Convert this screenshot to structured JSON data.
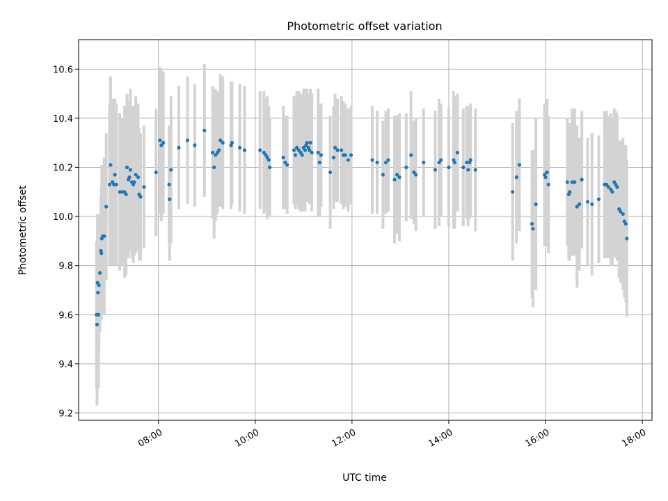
{
  "chart_data": {
    "type": "scatter",
    "title": "Photometric offset variation",
    "xlabel": "UTC time",
    "ylabel": "Photometric offset",
    "x_unit": "hours UTC",
    "xlim": [
      6.35,
      18.2
    ],
    "ylim": [
      9.17,
      10.72
    ],
    "x_ticks": [
      {
        "value": 8,
        "label": "08:00"
      },
      {
        "value": 10,
        "label": "10:00"
      },
      {
        "value": 12,
        "label": "12:00"
      },
      {
        "value": 14,
        "label": "14:00"
      },
      {
        "value": 16,
        "label": "16:00"
      },
      {
        "value": 18,
        "label": "18:00"
      }
    ],
    "y_ticks": [
      {
        "value": 9.2,
        "label": "9.2"
      },
      {
        "value": 9.4,
        "label": "9.4"
      },
      {
        "value": 9.6,
        "label": "9.6"
      },
      {
        "value": 9.8,
        "label": "9.8"
      },
      {
        "value": 10.0,
        "label": "10.0"
      },
      {
        "value": 10.2,
        "label": "10.2"
      },
      {
        "value": 10.4,
        "label": "10.4"
      },
      {
        "value": 10.6,
        "label": "10.6"
      }
    ],
    "grid": true,
    "marker_color": "#1f77b4",
    "errorbar_color": "#d3d3d3",
    "points": [
      [
        6.72,
        9.6,
        0.3
      ],
      [
        6.73,
        9.56,
        0.33
      ],
      [
        6.74,
        9.73,
        0.28
      ],
      [
        6.75,
        9.69,
        0.25
      ],
      [
        6.76,
        9.6,
        0.3
      ],
      [
        6.77,
        9.72,
        0.27
      ],
      [
        6.79,
        9.77,
        0.24
      ],
      [
        6.81,
        9.86,
        0.22
      ],
      [
        6.82,
        9.85,
        0.27
      ],
      [
        6.83,
        9.91,
        0.3
      ],
      [
        6.85,
        9.92,
        0.26
      ],
      [
        6.88,
        9.92,
        0.32
      ],
      [
        6.92,
        10.04,
        0.3
      ],
      [
        6.99,
        10.13,
        0.33
      ],
      [
        7.01,
        10.21,
        0.36
      ],
      [
        7.05,
        10.14,
        0.34
      ],
      [
        7.08,
        10.13,
        0.33
      ],
      [
        7.1,
        10.17,
        0.31
      ],
      [
        7.13,
        10.13,
        0.33
      ],
      [
        7.2,
        10.1,
        0.32
      ],
      [
        7.25,
        10.1,
        0.3
      ],
      [
        7.3,
        10.1,
        0.35
      ],
      [
        7.33,
        10.09,
        0.33
      ],
      [
        7.35,
        10.2,
        0.3
      ],
      [
        7.38,
        10.15,
        0.32
      ],
      [
        7.4,
        10.16,
        0.3
      ],
      [
        7.42,
        10.19,
        0.33
      ],
      [
        7.45,
        10.14,
        0.31
      ],
      [
        7.48,
        10.13,
        0.32
      ],
      [
        7.5,
        10.14,
        0.3
      ],
      [
        7.53,
        10.17,
        0.32
      ],
      [
        7.58,
        10.16,
        0.3
      ],
      [
        7.6,
        10.09,
        0.27
      ],
      [
        7.63,
        10.08,
        0.26
      ],
      [
        7.7,
        10.12,
        0.25
      ],
      [
        7.95,
        10.18,
        0.26
      ],
      [
        8.03,
        10.31,
        0.3
      ],
      [
        8.06,
        10.29,
        0.31
      ],
      [
        8.1,
        10.3,
        0.29
      ],
      [
        8.22,
        10.13,
        0.24
      ],
      [
        8.23,
        10.07,
        0.25
      ],
      [
        8.26,
        10.19,
        0.3
      ],
      [
        8.42,
        10.28,
        0.25
      ],
      [
        8.6,
        10.31,
        0.26
      ],
      [
        8.75,
        10.29,
        0.25
      ],
      [
        8.95,
        10.35,
        0.27
      ],
      [
        9.12,
        10.26,
        0.27
      ],
      [
        9.15,
        10.2,
        0.29
      ],
      [
        9.18,
        10.25,
        0.27
      ],
      [
        9.22,
        10.26,
        0.25
      ],
      [
        9.25,
        10.27,
        0.23
      ],
      [
        9.28,
        10.31,
        0.27
      ],
      [
        9.33,
        10.3,
        0.27
      ],
      [
        9.5,
        10.29,
        0.26
      ],
      [
        9.52,
        10.3,
        0.25
      ],
      [
        9.68,
        10.28,
        0.26
      ],
      [
        9.78,
        10.27,
        0.26
      ],
      [
        10.1,
        10.27,
        0.24
      ],
      [
        10.18,
        10.26,
        0.25
      ],
      [
        10.22,
        10.25,
        0.23
      ],
      [
        10.25,
        10.24,
        0.25
      ],
      [
        10.28,
        10.23,
        0.22
      ],
      [
        10.3,
        10.2,
        0.2
      ],
      [
        10.58,
        10.24,
        0.21
      ],
      [
        10.62,
        10.22,
        0.19
      ],
      [
        10.66,
        10.21,
        0.2
      ],
      [
        10.8,
        10.27,
        0.22
      ],
      [
        10.83,
        10.25,
        0.22
      ],
      [
        10.86,
        10.28,
        0.23
      ],
      [
        10.9,
        10.27,
        0.24
      ],
      [
        10.94,
        10.26,
        0.24
      ],
      [
        10.97,
        10.25,
        0.23
      ],
      [
        11.0,
        10.28,
        0.24
      ],
      [
        11.03,
        10.27,
        0.25
      ],
      [
        11.05,
        10.29,
        0.23
      ],
      [
        11.07,
        10.3,
        0.22
      ],
      [
        11.1,
        10.28,
        0.22
      ],
      [
        11.12,
        10.27,
        0.22
      ],
      [
        11.14,
        10.3,
        0.22
      ],
      [
        11.17,
        10.26,
        0.24
      ],
      [
        11.3,
        10.26,
        0.26
      ],
      [
        11.33,
        10.22,
        0.22
      ],
      [
        11.36,
        10.25,
        0.21
      ],
      [
        11.55,
        10.18,
        0.23
      ],
      [
        11.62,
        10.24,
        0.21
      ],
      [
        11.65,
        10.28,
        0.22
      ],
      [
        11.7,
        10.27,
        0.21
      ],
      [
        11.78,
        10.27,
        0.22
      ],
      [
        11.82,
        10.25,
        0.22
      ],
      [
        11.86,
        10.25,
        0.21
      ],
      [
        11.92,
        10.23,
        0.21
      ],
      [
        11.98,
        10.25,
        0.2
      ],
      [
        12.42,
        10.23,
        0.22
      ],
      [
        12.52,
        10.22,
        0.21
      ],
      [
        12.64,
        10.17,
        0.22
      ],
      [
        12.7,
        10.22,
        0.21
      ],
      [
        12.75,
        10.23,
        0.21
      ],
      [
        12.88,
        10.15,
        0.26
      ],
      [
        12.93,
        10.17,
        0.24
      ],
      [
        12.98,
        10.16,
        0.26
      ],
      [
        13.12,
        10.2,
        0.22
      ],
      [
        13.22,
        10.25,
        0.26
      ],
      [
        13.28,
        10.18,
        0.21
      ],
      [
        13.32,
        10.17,
        0.23
      ],
      [
        13.48,
        10.22,
        0.22
      ],
      [
        13.72,
        10.19,
        0.24
      ],
      [
        13.8,
        10.22,
        0.26
      ],
      [
        13.84,
        10.23,
        0.23
      ],
      [
        14.0,
        10.2,
        0.24
      ],
      [
        14.1,
        10.23,
        0.28
      ],
      [
        14.12,
        10.22,
        0.27
      ],
      [
        14.18,
        10.26,
        0.24
      ],
      [
        14.3,
        10.2,
        0.24
      ],
      [
        14.37,
        10.22,
        0.23
      ],
      [
        14.4,
        10.19,
        0.23
      ],
      [
        14.43,
        10.22,
        0.23
      ],
      [
        14.45,
        10.23,
        0.23
      ],
      [
        14.55,
        10.19,
        0.25
      ],
      [
        15.32,
        10.1,
        0.28
      ],
      [
        15.4,
        10.16,
        0.27
      ],
      [
        15.46,
        10.21,
        0.27
      ],
      [
        15.72,
        9.97,
        0.3
      ],
      [
        15.74,
        9.95,
        0.32
      ],
      [
        15.8,
        10.05,
        0.35
      ],
      [
        15.98,
        10.17,
        0.29
      ],
      [
        16.0,
        10.16,
        0.28
      ],
      [
        16.03,
        10.18,
        0.3
      ],
      [
        16.06,
        10.13,
        0.28
      ],
      [
        16.45,
        10.14,
        0.26
      ],
      [
        16.48,
        10.09,
        0.27
      ],
      [
        16.5,
        10.1,
        0.28
      ],
      [
        16.55,
        10.14,
        0.3
      ],
      [
        16.6,
        10.14,
        0.3
      ],
      [
        16.65,
        10.04,
        0.33
      ],
      [
        16.7,
        10.05,
        0.27
      ],
      [
        16.75,
        10.15,
        0.28
      ],
      [
        16.87,
        10.06,
        0.26
      ],
      [
        16.96,
        10.05,
        0.29
      ],
      [
        17.1,
        10.07,
        0.26
      ],
      [
        17.22,
        10.13,
        0.3
      ],
      [
        17.26,
        10.13,
        0.3
      ],
      [
        17.3,
        10.12,
        0.29
      ],
      [
        17.35,
        10.11,
        0.31
      ],
      [
        17.38,
        10.1,
        0.3
      ],
      [
        17.42,
        10.14,
        0.3
      ],
      [
        17.45,
        10.13,
        0.3
      ],
      [
        17.48,
        10.12,
        0.3
      ],
      [
        17.52,
        10.03,
        0.28
      ],
      [
        17.55,
        10.02,
        0.29
      ],
      [
        17.6,
        10.01,
        0.31
      ],
      [
        17.63,
        9.98,
        0.31
      ],
      [
        17.66,
        9.97,
        0.32
      ],
      [
        17.68,
        9.91,
        0.32
      ]
    ]
  }
}
